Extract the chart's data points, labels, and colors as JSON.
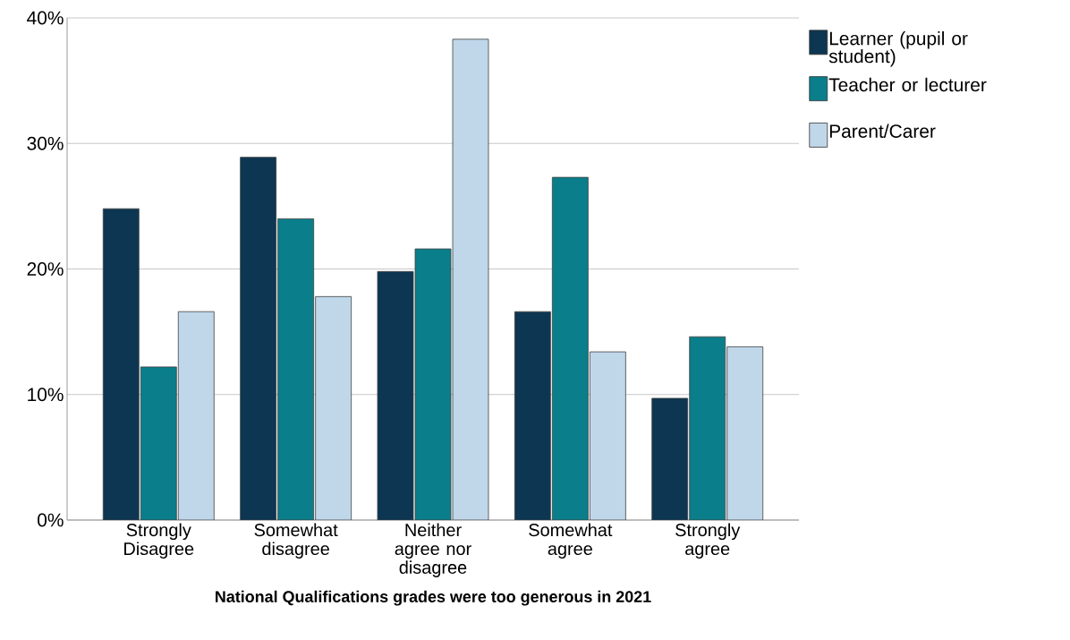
{
  "chart_data": {
    "type": "bar",
    "xlabel": "National Qualifications grades were too generous in 2021",
    "categories": [
      "Strongly Disagree",
      "Somewhat disagree",
      "Neither agree nor disagree",
      "Somewhat agree",
      "Strongly agree"
    ],
    "series": [
      {
        "name": "Learner (pupil or student)",
        "color": "#0c3651",
        "values": [
          24.8,
          28.9,
          19.8,
          16.6,
          9.7
        ]
      },
      {
        "name": "Teacher or lecturer",
        "color": "#0a7e8a",
        "values": [
          12.2,
          24.0,
          21.6,
          27.3,
          14.6
        ]
      },
      {
        "name": "Parent/Carer",
        "color": "#c0d7ea",
        "values": [
          16.6,
          17.8,
          38.3,
          13.4,
          13.8
        ]
      }
    ],
    "ylim": [
      0,
      40
    ],
    "yticks": [
      {
        "value": 0,
        "label": "0%"
      },
      {
        "value": 10,
        "label": "10%"
      },
      {
        "value": 20,
        "label": "20%"
      },
      {
        "value": 30,
        "label": "30%"
      },
      {
        "value": 40,
        "label": "40%"
      }
    ],
    "grid": "y",
    "legend": "top right"
  }
}
